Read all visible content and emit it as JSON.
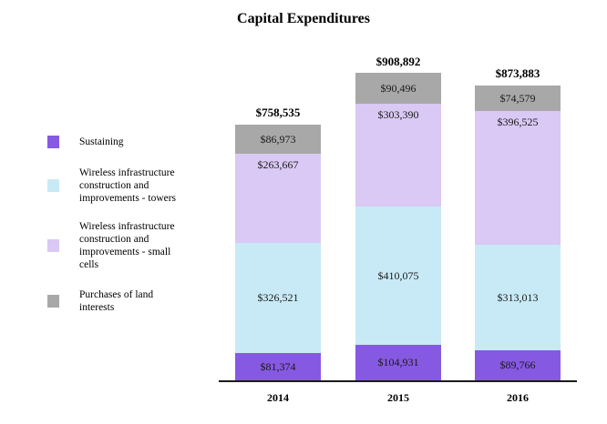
{
  "title": "Capital Expenditures",
  "colors": {
    "sustaining": "#8659E2",
    "towers": "#C8EAF6",
    "small_cells": "#D9C9F4",
    "land": "#A8A8A8",
    "axis": "#1A1A1A"
  },
  "legend": {
    "position": "left",
    "items": [
      {
        "key": "sustaining",
        "label": "Sustaining",
        "lines": [
          "Sustaining"
        ]
      },
      {
        "key": "towers",
        "label": "Wireless infrastructure construction and improvements - towers",
        "lines": [
          "Wireless infrastructure",
          "construction and",
          "improvements - towers"
        ]
      },
      {
        "key": "small_cells",
        "label": "Wireless infrastructure construction and improvements - small cells",
        "lines": [
          "Wireless infrastructure",
          "construction and",
          "improvements - small",
          "cells"
        ]
      },
      {
        "key": "land",
        "label": "Purchases of land interests",
        "lines": [
          "Purchases of land",
          "interests"
        ]
      }
    ]
  },
  "chart_data": {
    "type": "bar",
    "stacked": true,
    "title": "Capital Expenditures",
    "xlabel": "",
    "ylabel": "",
    "grid": false,
    "legend_position": "left",
    "categories": [
      "2014",
      "2015",
      "2016"
    ],
    "series": [
      {
        "key": "sustaining",
        "name": "Sustaining",
        "values": [
          81374,
          104931,
          89766
        ],
        "labels": [
          "$81,374",
          "$104,931",
          "$89,766"
        ]
      },
      {
        "key": "towers",
        "name": "Wireless infrastructure construction and improvements - towers",
        "values": [
          326521,
          410075,
          313013
        ],
        "labels": [
          "$326,521",
          "$410,075",
          "$313,013"
        ]
      },
      {
        "key": "small_cells",
        "name": "Wireless infrastructure construction and improvements - small cells",
        "values": [
          263667,
          303390,
          396525
        ],
        "labels": [
          "$263,667",
          "$303,390",
          "$396,525"
        ]
      },
      {
        "key": "land",
        "name": "Purchases of land interests",
        "values": [
          86973,
          90496,
          74579
        ],
        "labels": [
          "$86,973",
          "$90,496",
          "$74,579"
        ]
      }
    ],
    "totals": [
      758535,
      908892,
      873883
    ],
    "total_labels": [
      "$758,535",
      "$908,892",
      "$873,883"
    ]
  }
}
